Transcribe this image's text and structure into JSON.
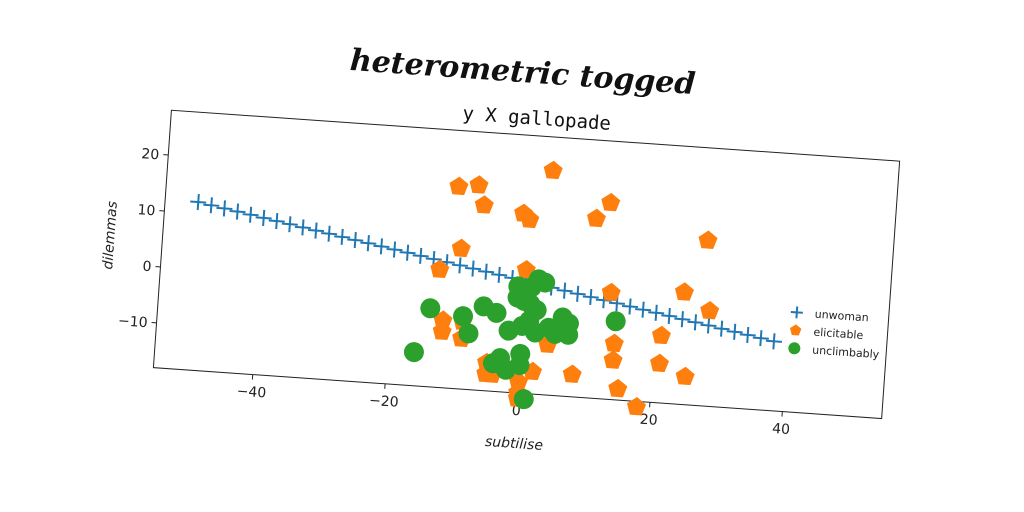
{
  "page": {
    "title": "heterometric togged"
  },
  "chart_data": {
    "type": "scatter",
    "title": "y X gallopade",
    "xlabel": "subtilise",
    "ylabel": "dilemmas",
    "xlim": [
      -55,
      55
    ],
    "ylim": [
      -18,
      28
    ],
    "xticks": [
      -40,
      -20,
      0,
      20,
      40
    ],
    "yticks": [
      -10,
      0,
      10,
      20
    ],
    "legend_position": "right",
    "series": [
      {
        "name": "unwoman",
        "marker": "plus",
        "color": "#1f77b4",
        "x": [
          -50,
          -48,
          -46,
          -44,
          -42,
          -40,
          -38,
          -36,
          -34,
          -32,
          -30,
          -28,
          -26,
          -24,
          -22,
          -20,
          -18,
          -16,
          -14,
          -12,
          -10,
          -8,
          -6,
          -4,
          -2,
          0,
          2,
          4,
          6,
          8,
          10,
          12,
          14,
          16,
          18,
          20,
          22,
          24,
          26,
          28,
          30,
          32,
          34,
          36,
          38
        ],
        "y": [
          12.0,
          11.6,
          11.2,
          10.8,
          10.4,
          10.0,
          9.6,
          9.2,
          8.8,
          8.4,
          8.0,
          7.6,
          7.2,
          6.8,
          6.4,
          6.0,
          5.6,
          5.2,
          4.8,
          4.4,
          4.0,
          3.6,
          3.2,
          2.8,
          2.4,
          2.0,
          1.6,
          1.2,
          0.8,
          0.4,
          0.0,
          -0.4,
          -0.8,
          -1.2,
          -1.6,
          -2.0,
          -2.4,
          -2.8,
          -3.2,
          -3.6,
          -4.0,
          -4.4,
          -4.8,
          -5.2,
          -5.6
        ]
      },
      {
        "name": "elicitable",
        "marker": "pentagon",
        "color": "#ff7f0e",
        "x": [
          3,
          -11,
          -8,
          -7,
          -1,
          0,
          10,
          12,
          27,
          -10,
          0,
          -13,
          13,
          24,
          28,
          -12,
          -9,
          6,
          -12,
          -9,
          4,
          21,
          14,
          -5,
          2,
          8,
          14,
          21,
          25,
          -5,
          0,
          -4,
          0,
          15,
          18,
          0
        ],
        "y": [
          22,
          18,
          18.5,
          15,
          14,
          13,
          14,
          17,
          11.5,
          7,
          4,
          3,
          1,
          2,
          -1,
          -6,
          -6,
          -4,
          -8,
          -9,
          -9,
          -6,
          -8,
          -13,
          -14,
          -14,
          -11,
          -11,
          -13,
          -15,
          -16,
          -15,
          -18,
          -16,
          -19,
          -19
        ]
      },
      {
        "name": "unclimbably",
        "marker": "circle",
        "color": "#2ca02c",
        "x": [
          -1,
          1,
          2,
          3,
          -1,
          0,
          1,
          2,
          -14,
          -6,
          -9,
          -4,
          14,
          6,
          7,
          0,
          1,
          2,
          4,
          -2,
          5,
          7,
          -8,
          -3,
          0,
          -16,
          -4,
          0,
          -2,
          1
        ],
        "y": [
          1,
          1,
          2.5,
          2,
          -1,
          -1.5,
          -2,
          -3,
          -4,
          -3,
          -5,
          -4,
          -4,
          -4,
          -5,
          -6,
          -5,
          -7,
          -6,
          -7,
          -7,
          -7,
          -8,
          -12,
          -11,
          -12,
          -13,
          -13,
          -14,
          -19
        ]
      }
    ]
  }
}
